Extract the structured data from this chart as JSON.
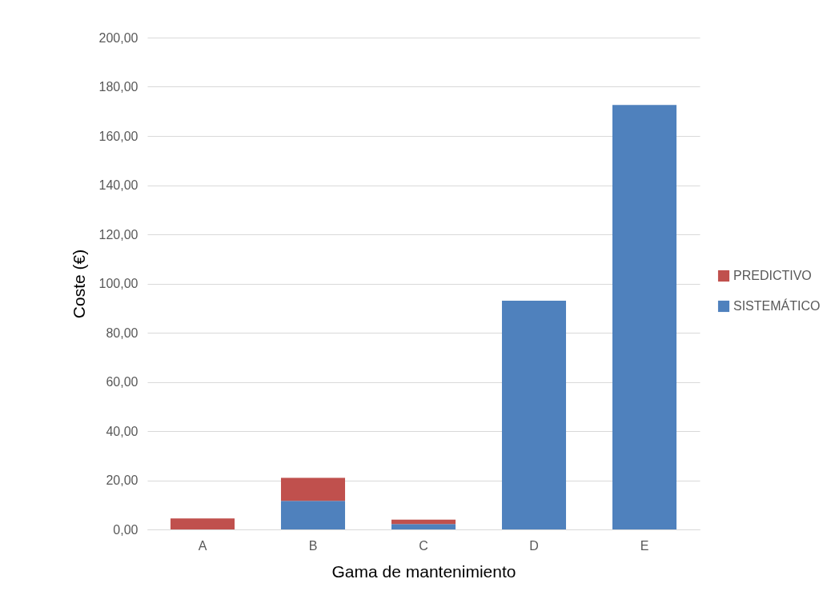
{
  "chart_data": {
    "type": "bar",
    "stacked": true,
    "xlabel": "Gama de mantenimiento",
    "ylabel": "Coste (€)",
    "categories": [
      "A",
      "B",
      "C",
      "D",
      "E"
    ],
    "series": [
      {
        "name": "SISTEMÁTICO",
        "color": "#4f81bd",
        "values": [
          0,
          11.6,
          2.2,
          93.0,
          172.6
        ]
      },
      {
        "name": "PREDICTIVO",
        "color": "#c0504d",
        "values": [
          4.5,
          9.4,
          1.8,
          0,
          0
        ]
      }
    ],
    "ylim": [
      0,
      200
    ],
    "yticks": [
      {
        "value": 0,
        "label": "0,00"
      },
      {
        "value": 20,
        "label": "20,00"
      },
      {
        "value": 40,
        "label": "40,00"
      },
      {
        "value": 60,
        "label": "60,00"
      },
      {
        "value": 80,
        "label": "80,00"
      },
      {
        "value": 100,
        "label": "100,00"
      },
      {
        "value": 120,
        "label": "120,00"
      },
      {
        "value": 140,
        "label": "140,00"
      },
      {
        "value": 160,
        "label": "160,00"
      },
      {
        "value": 180,
        "label": "180,00"
      },
      {
        "value": 200,
        "label": "200,00"
      }
    ],
    "grid": "y",
    "legend": "right"
  }
}
